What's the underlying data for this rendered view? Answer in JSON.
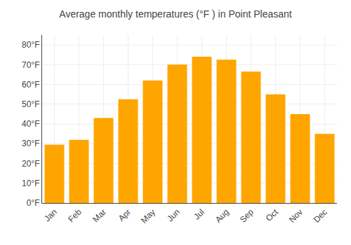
{
  "chart_data": {
    "type": "bar",
    "title": "Average monthly temperatures (°F ) in Point Pleasant",
    "categories": [
      "Jan",
      "Feb",
      "Mar",
      "Apr",
      "May",
      "Jun",
      "Jul",
      "Aug",
      "Sep",
      "Oct",
      "Nov",
      "Dec"
    ],
    "values": [
      29.5,
      32.0,
      43.0,
      52.5,
      62.0,
      70.0,
      74.0,
      72.5,
      66.5,
      55.0,
      45.0,
      35.0
    ],
    "color": "#FFA500",
    "ylim": [
      0,
      85
    ],
    "yticks": [
      {
        "value": 0,
        "label": "0°F"
      },
      {
        "value": 10,
        "label": "10°F"
      },
      {
        "value": 20,
        "label": "20°F"
      },
      {
        "value": 30,
        "label": "30°F"
      },
      {
        "value": 40,
        "label": "40°F"
      },
      {
        "value": 50,
        "label": "50°F"
      },
      {
        "value": 60,
        "label": "60°F"
      },
      {
        "value": 70,
        "label": "70°F"
      },
      {
        "value": 80,
        "label": "80°F"
      }
    ],
    "grid": true
  }
}
